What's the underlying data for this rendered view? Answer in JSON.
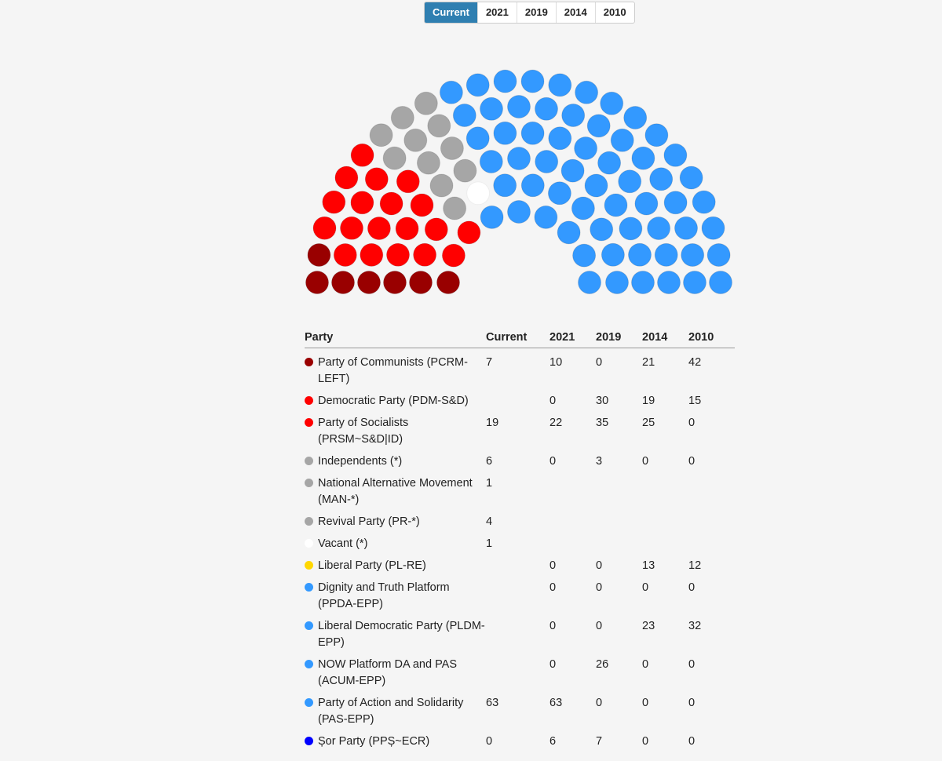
{
  "tabs": [
    "Current",
    "2021",
    "2019",
    "2014",
    "2010"
  ],
  "active_tab": "Current",
  "table": {
    "headers": [
      "Party",
      "Current",
      "2021",
      "2019",
      "2014",
      "2010"
    ]
  },
  "chart_data": {
    "type": "table",
    "columns": [
      "Current",
      "2021",
      "2019",
      "2014",
      "2010"
    ],
    "parties": [
      {
        "name": "Party of Communists (PCRM-LEFT)",
        "color": "#990000",
        "values": [
          "7",
          "10",
          "0",
          "21",
          "42"
        ]
      },
      {
        "name": "Democratic Party (PDM-S&D)",
        "color": "#ff0000",
        "values": [
          "",
          "0",
          "30",
          "19",
          "15"
        ]
      },
      {
        "name": "Party of Socialists (PRSM~S&D|ID)",
        "color": "#ff0000",
        "values": [
          "19",
          "22",
          "35",
          "25",
          "0"
        ]
      },
      {
        "name": "Independents (*)",
        "color": "#a6a6a6",
        "values": [
          "6",
          "0",
          "3",
          "0",
          "0"
        ]
      },
      {
        "name": "National Alternative Movement (MAN-*)",
        "color": "#a6a6a6",
        "values": [
          "1",
          "",
          "",
          "",
          ""
        ]
      },
      {
        "name": "Revival Party (PR-*)",
        "color": "#a6a6a6",
        "values": [
          "4",
          "",
          "",
          "",
          ""
        ]
      },
      {
        "name": "Vacant (*)",
        "color": "#ffffff",
        "values": [
          "1",
          "",
          "",
          "",
          ""
        ]
      },
      {
        "name": "Liberal Party (PL-RE)",
        "color": "#ffd700",
        "values": [
          "",
          "0",
          "0",
          "13",
          "12"
        ]
      },
      {
        "name": "Dignity and Truth Platform (PPDA-EPP)",
        "color": "#3399ff",
        "values": [
          "",
          "0",
          "0",
          "0",
          "0"
        ]
      },
      {
        "name": "Liberal Democratic Party (PLDM-EPP)",
        "color": "#3399ff",
        "values": [
          "",
          "0",
          "0",
          "23",
          "32"
        ]
      },
      {
        "name": "NOW Platform DA and PAS (ACUM-EPP)",
        "color": "#3399ff",
        "values": [
          "",
          "0",
          "26",
          "0",
          "0"
        ]
      },
      {
        "name": "Party of Action and Solidarity (PAS-EPP)",
        "color": "#3399ff",
        "values": [
          "63",
          "63",
          "0",
          "0",
          "0"
        ]
      },
      {
        "name": "Șor Party (PPȘ~ECR)",
        "color": "#0000ff",
        "values": [
          "0",
          "6",
          "7",
          "0",
          "0"
        ]
      }
    ]
  }
}
